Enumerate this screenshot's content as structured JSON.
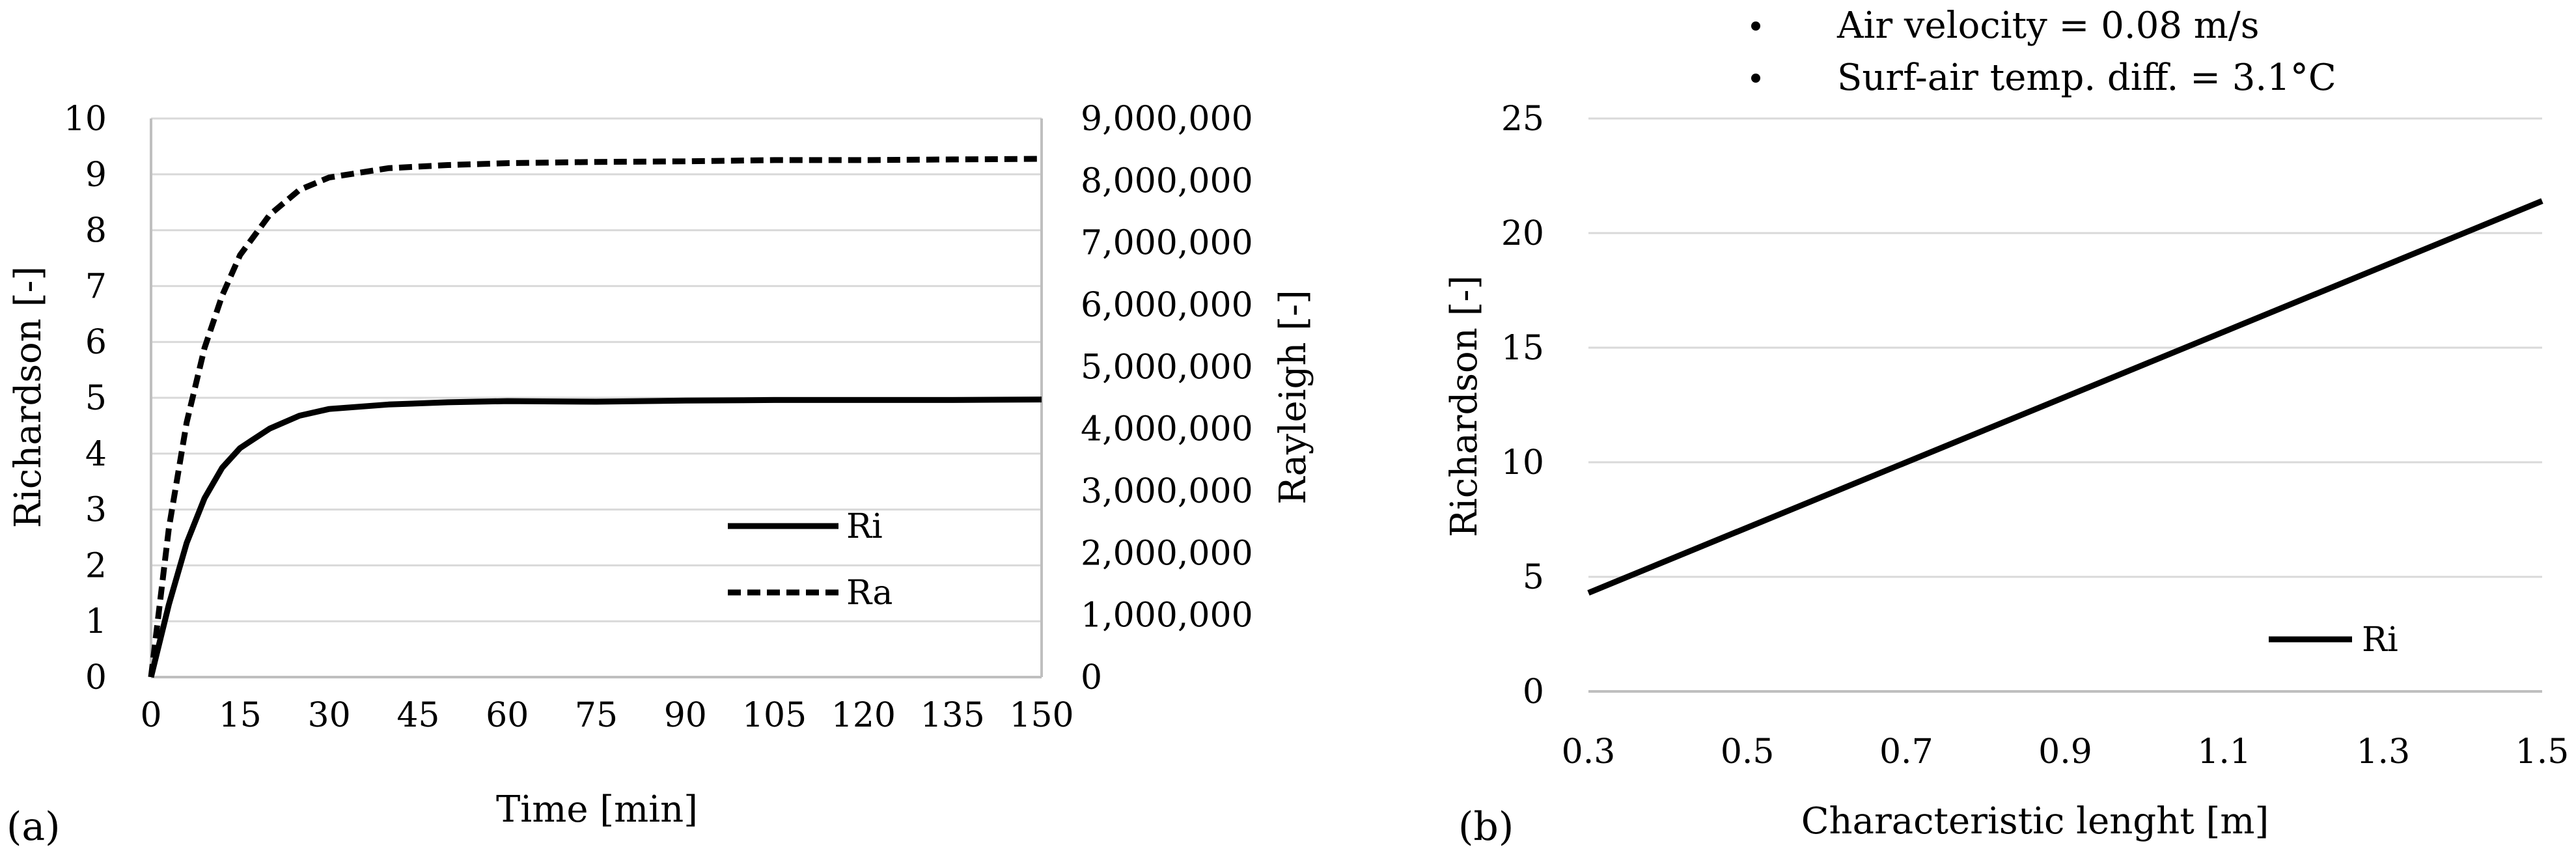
{
  "chart_data": [
    {
      "type": "line",
      "panel_label": "(a)",
      "xlabel": "Time [min]",
      "ylabel": "Richardson [-]",
      "y2label": "Rayleigh [-]",
      "xlim": [
        0,
        150
      ],
      "ylim": [
        0,
        10
      ],
      "y2lim": [
        0,
        9000000
      ],
      "xticks": [
        0,
        15,
        30,
        45,
        60,
        75,
        90,
        105,
        120,
        135,
        150
      ],
      "yticks": [
        0,
        1,
        2,
        3,
        4,
        5,
        6,
        7,
        8,
        9,
        10
      ],
      "y2ticks": [
        "0",
        "1,000,000",
        "2,000,000",
        "3,000,000",
        "4,000,000",
        "5,000,000",
        "6,000,000",
        "7,000,000",
        "8,000,000",
        "9,000,000"
      ],
      "grid": true,
      "legend_position": "bottom-right",
      "series": [
        {
          "name": "Ri",
          "axis": "left",
          "style": "solid",
          "x": [
            0,
            3,
            6,
            9,
            12,
            15,
            20,
            25,
            30,
            40,
            50,
            60,
            75,
            90,
            105,
            120,
            135,
            150
          ],
          "y": [
            0,
            1.3,
            2.4,
            3.2,
            3.75,
            4.1,
            4.45,
            4.68,
            4.8,
            4.88,
            4.92,
            4.94,
            4.93,
            4.95,
            4.96,
            4.96,
            4.96,
            4.97
          ]
        },
        {
          "name": "Ra",
          "axis": "right",
          "style": "dashed",
          "x": [
            0,
            3,
            6,
            9,
            12,
            15,
            20,
            25,
            30,
            40,
            50,
            60,
            75,
            90,
            105,
            120,
            135,
            150
          ],
          "y": [
            0,
            2400000,
            4100000,
            5300000,
            6150000,
            6800000,
            7450000,
            7850000,
            8050000,
            8200000,
            8250000,
            8280000,
            8300000,
            8310000,
            8330000,
            8330000,
            8340000,
            8350000
          ]
        }
      ]
    },
    {
      "type": "line",
      "panel_label": "(b)",
      "xlabel": "Characteristic lenght [m]",
      "ylabel": "Richardson [-]",
      "xlim": [
        0.3,
        1.5
      ],
      "ylim": [
        0,
        25
      ],
      "xticks": [
        "0.3",
        "0.5",
        "0.7",
        "0.9",
        "1.1",
        "1.3",
        "1.5"
      ],
      "yticks": [
        0,
        5,
        10,
        15,
        20,
        25
      ],
      "grid": true,
      "legend_position": "bottom-right",
      "annotations": [
        "Air velocity = 0.08 m/s",
        "Surf-air temp. diff. = 3.1°C"
      ],
      "series": [
        {
          "name": "Ri",
          "style": "solid",
          "x": [
            0.3,
            1.5
          ],
          "y": [
            4.3,
            21.4
          ]
        }
      ]
    }
  ]
}
